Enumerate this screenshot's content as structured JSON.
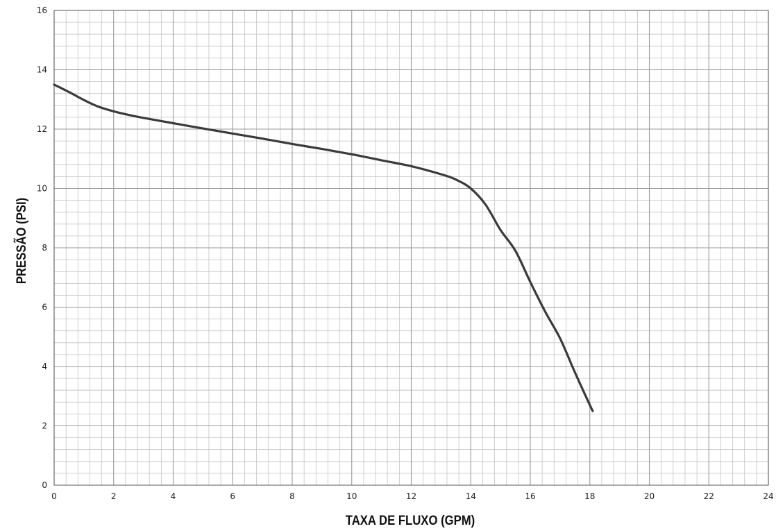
{
  "chart_data": {
    "type": "line",
    "title": "",
    "xlabel": "TAXA DE FLUXO (GPM)",
    "ylabel": "PRESSÃO (PSI)",
    "xlim": [
      0,
      24
    ],
    "ylim": [
      0,
      16
    ],
    "x_ticks": [
      "0",
      "2",
      "4",
      "6",
      "8",
      "10",
      "12",
      "14",
      "16",
      "18",
      "20",
      "22",
      "24"
    ],
    "y_ticks": [
      "0",
      "2",
      "4",
      "6",
      "8",
      "10",
      "12",
      "14",
      "16"
    ],
    "grid": true,
    "grid_minor_step_x": 0.4,
    "grid_minor_step_y": 0.4,
    "line_color": "#3a3a3a",
    "grid_major_color": "#9a9a9a",
    "grid_minor_color": "#c4c4c4",
    "series": [
      {
        "x": [
          0,
          0.5,
          1,
          1.5,
          2,
          2.5,
          3,
          4,
          5,
          6,
          7,
          8,
          9,
          10,
          11,
          12,
          13,
          13.5,
          14,
          14.5,
          15,
          15.5,
          16,
          16.5,
          17,
          17.5,
          18,
          18.1
        ],
        "values": [
          13.5,
          13.25,
          12.98,
          12.75,
          12.6,
          12.48,
          12.38,
          12.2,
          12.02,
          11.85,
          11.68,
          11.5,
          11.33,
          11.15,
          10.95,
          10.75,
          10.48,
          10.3,
          10.0,
          9.45,
          8.6,
          7.9,
          6.85,
          5.85,
          4.95,
          3.8,
          2.7,
          2.5
        ]
      }
    ]
  }
}
